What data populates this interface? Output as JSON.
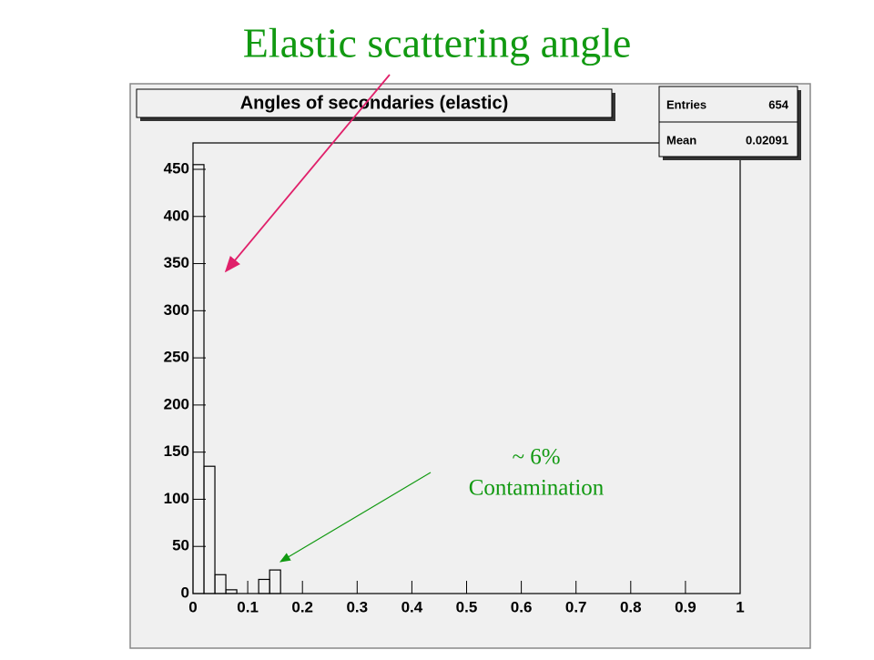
{
  "slide_title": "Elastic scattering angle",
  "annotations": [
    "~ 6%",
    "Contamination"
  ],
  "chart_data": {
    "type": "histogram",
    "title": "Angles of secondaries (elastic)",
    "bins": [
      0,
      0.02,
      0.04,
      0.06,
      0.08,
      0.1,
      0.12,
      0.14,
      0.16,
      0.18,
      0.2,
      0.22,
      0.24,
      0.26,
      0.28,
      0.3,
      0.32,
      0.34,
      0.36,
      0.38,
      0.4,
      0.42,
      0.44,
      0.46,
      0.48,
      0.5,
      0.52,
      0.54,
      0.56,
      0.58,
      0.6,
      0.62,
      0.64,
      0.66,
      0.68,
      0.7,
      0.72,
      0.74,
      0.76,
      0.78,
      0.8,
      0.82,
      0.84,
      0.86,
      0.88,
      0.9,
      0.92,
      0.94,
      0.96,
      0.98,
      1
    ],
    "values": [
      455,
      135,
      20,
      4,
      0,
      0,
      15,
      25,
      0,
      0,
      0,
      0,
      0,
      0,
      0,
      0,
      0,
      0,
      0,
      0,
      0,
      0,
      0,
      0,
      0,
      0,
      0,
      0,
      0,
      0,
      0,
      0,
      0,
      0,
      0,
      0,
      0,
      0,
      0,
      0,
      0,
      0,
      0,
      0,
      0,
      0,
      0,
      0,
      0,
      0
    ],
    "color": "#000000",
    "xlim": [
      0,
      1
    ],
    "xticks": [
      0,
      0.1,
      0.2,
      0.3,
      0.4,
      0.5,
      0.6,
      0.7,
      0.8,
      0.9,
      1
    ],
    "ylim": [
      0,
      478
    ],
    "yticks": [
      0,
      50,
      100,
      150,
      200,
      250,
      300,
      350,
      400,
      450
    ],
    "grid": false,
    "stats": {
      "entries_label": "Entries",
      "entries": 654,
      "mean_label": "Mean",
      "mean": 0.02091
    }
  }
}
